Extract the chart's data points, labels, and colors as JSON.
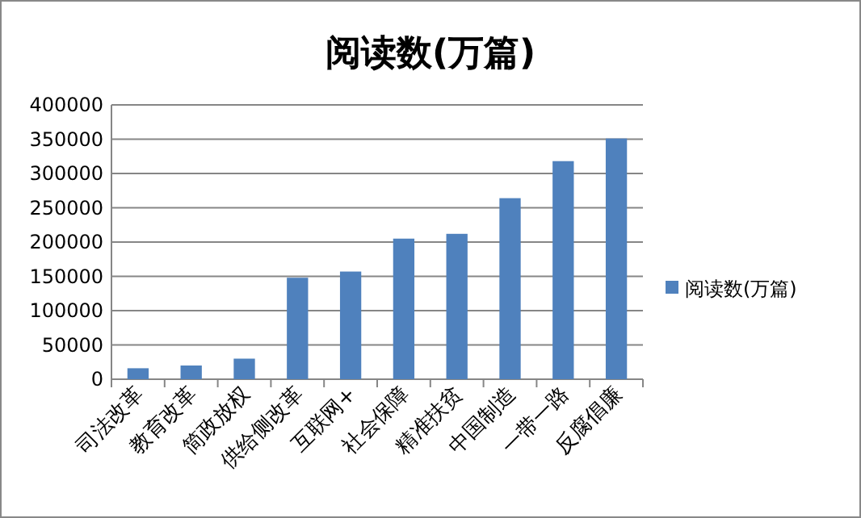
{
  "chart_data": {
    "type": "bar",
    "title": "阅读数(万篇)",
    "categories": [
      "司法改革",
      "教育改革",
      "简政放权",
      "供给侧改革",
      "互联网+",
      "社会保障",
      "精准扶贫",
      "中国制造",
      "一带一路",
      "反腐倡廉"
    ],
    "series": [
      {
        "name": "阅读数(万篇)",
        "color": "#4f81bd",
        "values": [
          16000,
          20000,
          30000,
          148000,
          157000,
          205000,
          212000,
          264000,
          318000,
          351000
        ]
      }
    ],
    "ylim": [
      0,
      400000
    ],
    "yticks": [
      0,
      50000,
      100000,
      150000,
      200000,
      250000,
      300000,
      350000,
      400000
    ],
    "grid": "y",
    "legend": "right"
  }
}
